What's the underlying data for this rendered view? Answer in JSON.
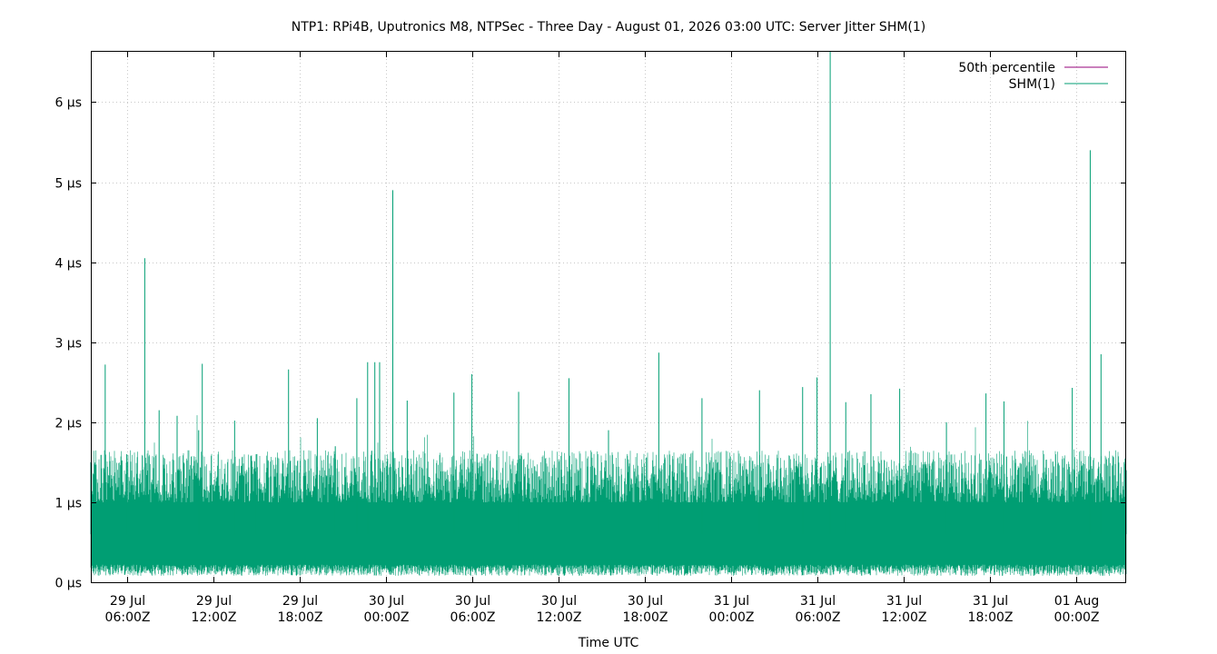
{
  "chart_data": {
    "type": "line",
    "title": "NTP1: RPi4B, Uputronics M8, NTPSec - Three Day - August 01, 2026 03:00 UTC: Server Jitter SHM(1)",
    "xlabel": "Time UTC",
    "ylabel": "",
    "x_range": [
      "2026-07-29T03:30Z",
      "2026-08-01T03:30Z"
    ],
    "ylim": [
      0,
      6.63
    ],
    "y_unit": "µs",
    "grid": true,
    "legend_position": "top-right",
    "x_ticks": [
      {
        "date": "29 Jul",
        "time": "06:00Z",
        "t": "2026-07-29T06:00Z"
      },
      {
        "date": "29 Jul",
        "time": "12:00Z",
        "t": "2026-07-29T12:00Z"
      },
      {
        "date": "29 Jul",
        "time": "18:00Z",
        "t": "2026-07-29T18:00Z"
      },
      {
        "date": "30 Jul",
        "time": "00:00Z",
        "t": "2026-07-30T00:00Z"
      },
      {
        "date": "30 Jul",
        "time": "06:00Z",
        "t": "2026-07-30T06:00Z"
      },
      {
        "date": "30 Jul",
        "time": "12:00Z",
        "t": "2026-07-30T12:00Z"
      },
      {
        "date": "30 Jul",
        "time": "18:00Z",
        "t": "2026-07-30T18:00Z"
      },
      {
        "date": "31 Jul",
        "time": "00:00Z",
        "t": "2026-07-31T00:00Z"
      },
      {
        "date": "31 Jul",
        "time": "06:00Z",
        "t": "2026-07-31T06:00Z"
      },
      {
        "date": "31 Jul",
        "time": "12:00Z",
        "t": "2026-07-31T12:00Z"
      },
      {
        "date": "31 Jul",
        "time": "18:00Z",
        "t": "2026-07-31T18:00Z"
      },
      {
        "date": "01 Aug",
        "time": "00:00Z",
        "t": "2026-08-01T00:00Z"
      }
    ],
    "y_ticks": [
      {
        "value": 0,
        "label": "0 µs"
      },
      {
        "value": 1,
        "label": "1 µs"
      },
      {
        "value": 2,
        "label": "2 µs"
      },
      {
        "value": 3,
        "label": "3 µs"
      },
      {
        "value": 4,
        "label": "4 µs"
      },
      {
        "value": 5,
        "label": "5 µs"
      },
      {
        "value": 6,
        "label": "6 µs"
      }
    ],
    "series": [
      {
        "name": "50th percentile",
        "color": "#94007a",
        "visible_in_plot": false,
        "points": []
      },
      {
        "name": "SHM(1)",
        "color": "#009e73",
        "band": {
          "typical_low": 0.2,
          "typical_high": 1.5
        },
        "points": [
          {
            "t": "2026-07-29T03:30Z",
            "v": 1.5
          },
          {
            "t": "2026-07-29T04:30Z",
            "v": 2.72
          },
          {
            "t": "2026-07-29T06:00Z",
            "v": 1.6
          },
          {
            "t": "2026-07-29T07:15Z",
            "v": 4.05
          },
          {
            "t": "2026-07-29T08:15Z",
            "v": 2.15
          },
          {
            "t": "2026-07-29T09:30Z",
            "v": 2.08
          },
          {
            "t": "2026-07-29T11:00Z",
            "v": 1.9
          },
          {
            "t": "2026-07-29T11:15Z",
            "v": 2.73
          },
          {
            "t": "2026-07-29T13:30Z",
            "v": 2.02
          },
          {
            "t": "2026-07-29T15:00Z",
            "v": 1.6
          },
          {
            "t": "2026-07-29T17:15Z",
            "v": 2.66
          },
          {
            "t": "2026-07-29T19:15Z",
            "v": 2.05
          },
          {
            "t": "2026-07-29T20:30Z",
            "v": 1.7
          },
          {
            "t": "2026-07-29T22:00Z",
            "v": 2.3
          },
          {
            "t": "2026-07-29T22:45Z",
            "v": 2.75
          },
          {
            "t": "2026-07-29T23:15Z",
            "v": 2.75
          },
          {
            "t": "2026-07-29T23:35Z",
            "v": 2.75
          },
          {
            "t": "2026-07-30T00:30Z",
            "v": 4.9
          },
          {
            "t": "2026-07-30T01:30Z",
            "v": 2.27
          },
          {
            "t": "2026-07-30T04:45Z",
            "v": 2.37
          },
          {
            "t": "2026-07-30T06:00Z",
            "v": 2.6
          },
          {
            "t": "2026-07-30T09:15Z",
            "v": 2.38
          },
          {
            "t": "2026-07-30T12:45Z",
            "v": 2.55
          },
          {
            "t": "2026-07-30T15:30Z",
            "v": 1.9
          },
          {
            "t": "2026-07-30T19:00Z",
            "v": 2.87
          },
          {
            "t": "2026-07-30T22:00Z",
            "v": 2.3
          },
          {
            "t": "2026-07-31T02:00Z",
            "v": 2.4
          },
          {
            "t": "2026-07-31T05:00Z",
            "v": 2.44
          },
          {
            "t": "2026-07-31T06:00Z",
            "v": 2.56
          },
          {
            "t": "2026-07-31T06:55Z",
            "v": 6.63
          },
          {
            "t": "2026-07-31T08:00Z",
            "v": 2.25
          },
          {
            "t": "2026-07-31T09:45Z",
            "v": 2.35
          },
          {
            "t": "2026-07-31T11:45Z",
            "v": 2.42
          },
          {
            "t": "2026-07-31T15:00Z",
            "v": 2.0
          },
          {
            "t": "2026-07-31T17:45Z",
            "v": 2.36
          },
          {
            "t": "2026-07-31T19:00Z",
            "v": 2.26
          },
          {
            "t": "2026-07-31T23:45Z",
            "v": 2.43
          },
          {
            "t": "2026-08-01T01:00Z",
            "v": 5.4
          },
          {
            "t": "2026-08-01T01:45Z",
            "v": 2.85
          },
          {
            "t": "2026-08-01T03:30Z",
            "v": 1.4
          }
        ]
      }
    ]
  }
}
